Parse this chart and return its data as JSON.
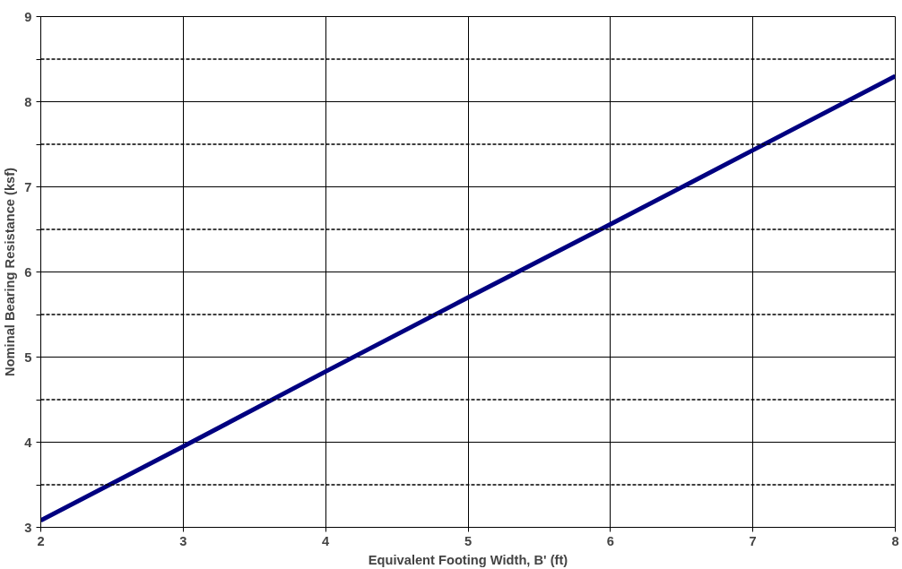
{
  "chart_data": {
    "type": "line",
    "xlabel": "Equivalent Footing Width, B' (ft)",
    "ylabel": "Nominal Bearing Resistance (ksf)",
    "x": [
      2,
      3,
      4,
      5,
      6,
      7,
      8
    ],
    "series": [
      {
        "color": "#000080",
        "values": [
          3.08,
          3.95,
          4.83,
          5.7,
          6.56,
          7.43,
          8.3
        ]
      }
    ],
    "xlim": [
      2,
      8
    ],
    "xticks": [
      2,
      3,
      4,
      5,
      6,
      7,
      8
    ],
    "ylim": [
      3,
      9
    ],
    "yticks": [
      3,
      {
        "value": 3.5,
        "label": null
      },
      4,
      {
        "value": 4.5,
        "label": null
      },
      5,
      {
        "value": 5.5,
        "label": null
      },
      6,
      {
        "value": 6.5,
        "label": null
      },
      7,
      {
        "value": 7.5,
        "label": null
      },
      8,
      {
        "value": 8.5,
        "label": null
      },
      9
    ],
    "grid": true,
    "marker": "none",
    "line_style": "solid"
  }
}
